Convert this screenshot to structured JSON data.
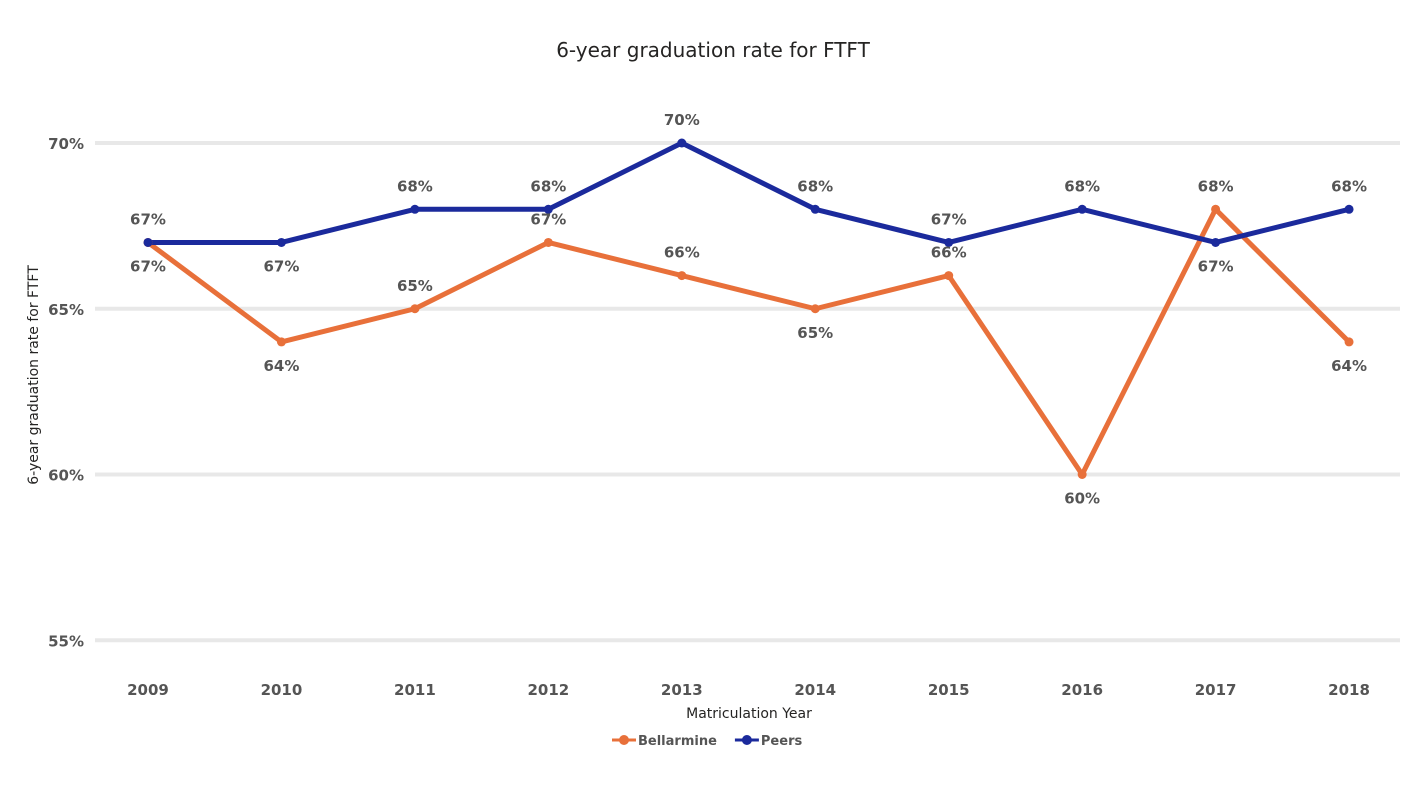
{
  "chart_data": {
    "type": "line",
    "title": "6-year graduation rate for FTFT",
    "xlabel": "Matriculation Year",
    "ylabel": "6-year graduation rate for FTFT",
    "categories": [
      "2009",
      "2010",
      "2011",
      "2012",
      "2013",
      "2014",
      "2015",
      "2016",
      "2017",
      "2018"
    ],
    "yticks": [
      "55%",
      "60%",
      "65%",
      "70%"
    ],
    "ylim": [
      55,
      71
    ],
    "grid": true,
    "legend_position": "bottom-center",
    "series": [
      {
        "name": "Bellarmine",
        "color": "#E8703A",
        "values": [
          67,
          64,
          65,
          67,
          66,
          65,
          66,
          60,
          68,
          64
        ]
      },
      {
        "name": "Peers",
        "color": "#1B2A9C",
        "values": [
          67,
          67,
          68,
          68,
          70,
          68,
          67,
          68,
          67,
          68
        ]
      }
    ]
  }
}
